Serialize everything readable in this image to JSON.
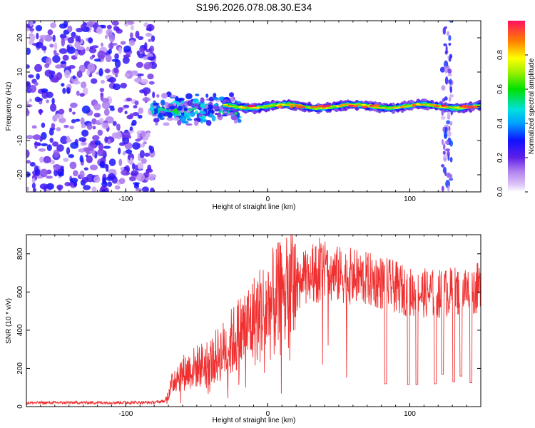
{
  "title": "S196.2026.078.08.30.E34",
  "colors": {
    "snr_line": "#f03030",
    "axis": "#000000",
    "background": "#ffffff"
  },
  "chart_data": [
    {
      "type": "heatmap",
      "name": "spectrogram",
      "xlabel": "Height of straight line (km)",
      "ylabel": "Frequency (Hz)",
      "xlim": [
        -170,
        150
      ],
      "ylim": [
        -25,
        25
      ],
      "x_ticks": [
        -100,
        0,
        100
      ],
      "x_tick_labels": [
        "-100",
        "0",
        "100"
      ],
      "y_ticks": [
        -20,
        -10,
        0,
        10,
        20
      ],
      "y_tick_labels": [
        "-20",
        "-10",
        "0",
        "10",
        "20"
      ],
      "colorbar": {
        "label": "Normalized spectral amplitude",
        "range": [
          0,
          1
        ],
        "ticks": [
          0.0,
          0.2,
          0.4,
          0.6,
          0.8
        ],
        "tick_labels": [
          "0.0",
          "0.2",
          "0.4",
          "0.6",
          "0.8"
        ]
      },
      "regions": [
        {
          "desc": "noise",
          "x_range": [
            -170,
            -80
          ],
          "f_range": [
            -25,
            25
          ],
          "amplitude": 0.25
        },
        {
          "desc": "broadening onset",
          "x_range": [
            -82,
            -20
          ],
          "f_center": -1,
          "f_spread": 4,
          "amplitude": 0.55
        },
        {
          "desc": "carrier",
          "x_range": [
            -20,
            150
          ],
          "f_center": 0,
          "f_spread": 1.2,
          "amplitude": 0.9
        },
        {
          "desc": "interference stripe",
          "x_range": [
            123,
            130
          ],
          "f_range": [
            -25,
            25
          ],
          "amplitude": 0.3
        }
      ]
    },
    {
      "type": "line",
      "name": "snr",
      "xlabel": "Height of straight line (km)",
      "ylabel": "SNR (10 * v/v)",
      "xlim": [
        -170,
        150
      ],
      "ylim": [
        0,
        900
      ],
      "x_ticks": [
        -100,
        0,
        100
      ],
      "x_tick_labels": [
        "-100",
        "0",
        "100"
      ],
      "y_ticks": [
        0,
        200,
        400,
        600,
        800
      ],
      "y_tick_labels": [
        "0",
        "200",
        "400",
        "600",
        "800"
      ],
      "envelope": {
        "x": [
          -170,
          -80,
          -72,
          -65,
          -50,
          -40,
          -30,
          -20,
          -10,
          0,
          10,
          20,
          30,
          40,
          60,
          80,
          100,
          120,
          150
        ],
        "y": [
          20,
          22,
          30,
          160,
          210,
          240,
          300,
          380,
          450,
          520,
          570,
          640,
          690,
          700,
          680,
          650,
          600,
          590,
          620
        ]
      },
      "dropouts": [
        {
          "x": 83,
          "y": 120
        },
        {
          "x": 99,
          "y": 115
        },
        {
          "x": 105,
          "y": 115
        },
        {
          "x": 118,
          "y": 120
        },
        {
          "x": 123,
          "y": 170
        },
        {
          "x": 131,
          "y": 130
        },
        {
          "x": 136,
          "y": 160
        },
        {
          "x": 143,
          "y": 125
        }
      ]
    }
  ]
}
